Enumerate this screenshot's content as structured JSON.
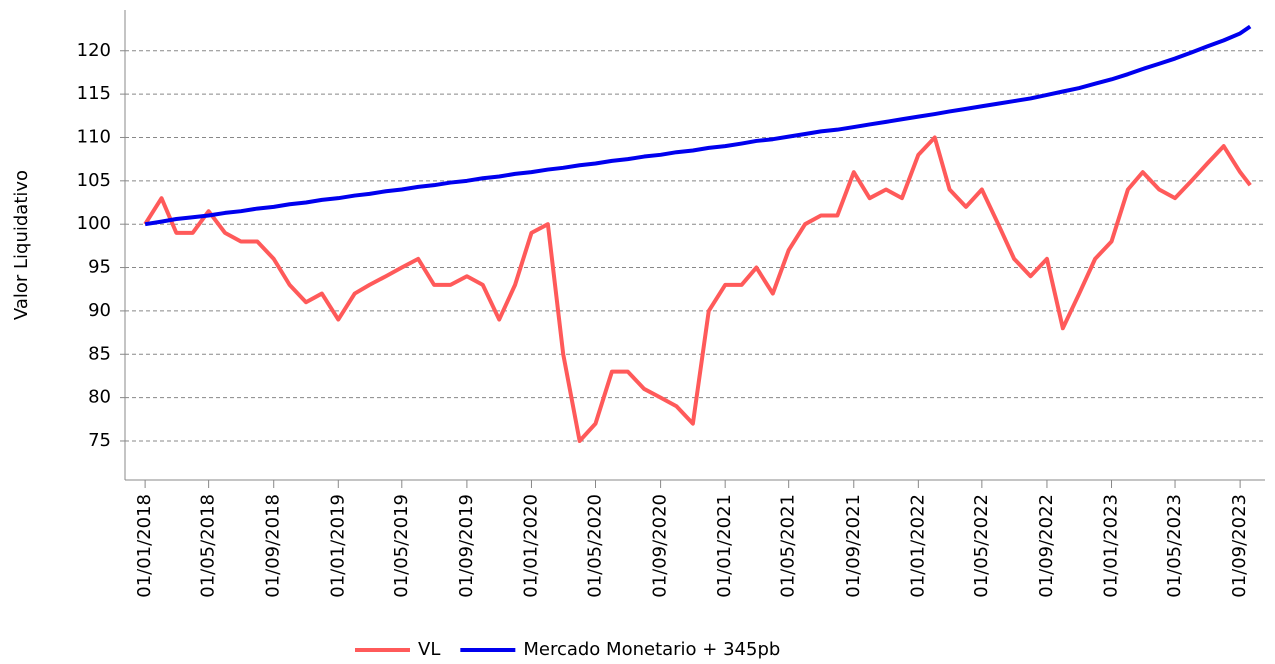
{
  "chart_data": {
    "type": "line",
    "y_label": "Valor Liquidativo",
    "x": [
      "01/01/2018",
      "01/02/2018",
      "01/03/2018",
      "01/04/2018",
      "01/05/2018",
      "01/06/2018",
      "01/07/2018",
      "01/08/2018",
      "01/09/2018",
      "01/10/2018",
      "01/11/2018",
      "01/12/2018",
      "01/01/2019",
      "01/02/2019",
      "01/03/2019",
      "01/04/2019",
      "01/05/2019",
      "01/06/2019",
      "01/07/2019",
      "01/08/2019",
      "01/09/2019",
      "01/10/2019",
      "01/11/2019",
      "01/12/2019",
      "01/01/2020",
      "01/02/2020",
      "01/03/2020",
      "01/04/2020",
      "01/05/2020",
      "01/06/2020",
      "01/07/2020",
      "01/08/2020",
      "01/09/2020",
      "01/10/2020",
      "01/11/2020",
      "01/12/2020",
      "01/01/2021",
      "01/02/2021",
      "01/03/2021",
      "01/04/2021",
      "01/05/2021",
      "01/06/2021",
      "01/07/2021",
      "01/08/2021",
      "01/09/2021",
      "01/10/2021",
      "01/11/2021",
      "01/12/2021",
      "01/01/2022",
      "01/02/2022",
      "01/03/2022",
      "01/04/2022",
      "01/05/2022",
      "01/06/2022",
      "01/07/2022",
      "01/08/2022",
      "01/09/2022",
      "01/10/2022",
      "01/11/2022",
      "01/12/2022",
      "01/01/2023",
      "01/02/2023",
      "01/03/2023",
      "01/04/2023",
      "01/05/2023",
      "01/06/2023",
      "01/07/2023",
      "01/08/2023",
      "01/09/2023",
      "20/09/2023"
    ],
    "series": [
      {
        "name": "VL",
        "color": "#ff5a5a",
        "values": [
          100,
          103,
          99,
          99,
          101.5,
          99,
          98,
          98,
          96,
          93,
          91,
          92,
          89,
          92,
          93,
          94,
          95,
          96,
          93,
          93,
          94,
          93,
          89,
          93,
          99,
          100,
          85,
          75,
          77,
          83,
          83,
          81,
          80,
          79,
          77,
          90,
          93,
          93,
          95,
          92,
          97,
          100,
          101,
          101,
          106,
          103,
          104,
          103,
          108,
          110,
          104,
          102,
          104,
          100,
          96,
          94,
          96,
          88,
          92,
          96,
          98,
          104,
          106,
          104,
          103,
          105,
          107,
          109,
          106,
          104.5
        ]
      },
      {
        "name": "Mercado Monetario + 345pb",
        "color": "#0000ee",
        "values": [
          100,
          100.3,
          100.6,
          100.8,
          101.0,
          101.3,
          101.5,
          101.8,
          102.0,
          102.3,
          102.5,
          102.8,
          103.0,
          103.3,
          103.5,
          103.8,
          104.0,
          104.3,
          104.5,
          104.8,
          105.0,
          105.3,
          105.5,
          105.8,
          106.0,
          106.3,
          106.5,
          106.8,
          107.0,
          107.3,
          107.5,
          107.8,
          108.0,
          108.3,
          108.5,
          108.8,
          109.0,
          109.3,
          109.6,
          109.8,
          110.1,
          110.4,
          110.7,
          110.9,
          111.2,
          111.5,
          111.8,
          112.1,
          112.4,
          112.7,
          113.0,
          113.3,
          113.6,
          113.9,
          114.2,
          114.5,
          114.9,
          115.3,
          115.7,
          116.2,
          116.7,
          117.3,
          117.9,
          118.5,
          119.1,
          119.8,
          120.5,
          121.2,
          122.0,
          122.8
        ]
      }
    ],
    "xlim": [
      "24/11/2017",
      "18/10/2023"
    ],
    "xticks": [
      "01/01/2018",
      "01/05/2018",
      "01/09/2018",
      "01/01/2019",
      "01/05/2019",
      "01/09/2019",
      "01/01/2020",
      "01/05/2020",
      "01/09/2020",
      "01/01/2021",
      "01/05/2021",
      "01/09/2021",
      "01/01/2022",
      "01/05/2022",
      "01/09/2022",
      "01/01/2023",
      "01/05/2023",
      "01/09/2023"
    ],
    "ylim": [
      70.5,
      124.7
    ],
    "yticks": [
      75,
      80,
      85,
      90,
      95,
      100,
      105,
      110,
      115,
      120
    ],
    "grid": true,
    "legend": "bottom"
  }
}
